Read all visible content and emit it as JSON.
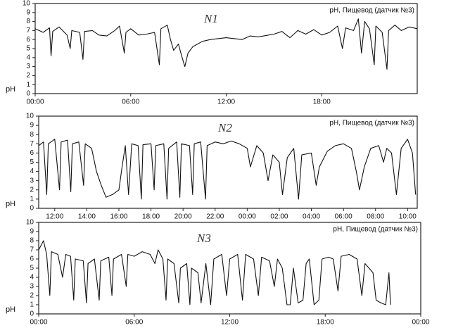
{
  "chart_data": [
    {
      "type": "line",
      "annotation": "N1",
      "ylabel": "pH",
      "x": [
        0,
        0.5,
        0.9,
        1.0,
        1.1,
        1.5,
        2.0,
        2.2,
        2.3,
        2.8,
        3.0,
        3.1,
        3.6,
        4.0,
        4.5,
        5.0,
        5.3,
        5.6,
        5.7,
        6.0,
        6.5,
        7.0,
        7.5,
        7.8,
        7.9,
        8.3,
        8.5,
        8.7,
        9.0,
        9.2,
        9.4,
        9.6,
        9.9,
        10.5,
        11,
        12,
        13,
        13.5,
        14,
        15,
        15.5,
        16.0,
        16.5,
        17.0,
        17.5,
        18.0,
        18.5,
        19.0,
        19.3,
        19.5,
        20.0,
        20.3,
        20.5,
        20.7,
        21.0,
        21.3,
        21.4,
        21.8,
        22.1,
        22.2,
        22.6,
        23.0,
        23.5,
        24.0
      ],
      "series": [
        {
          "name": "pH, Пищевод (датчик №3)",
          "color": "#111111",
          "values": [
            7.2,
            6.8,
            7.3,
            4.2,
            6.9,
            7.4,
            6.5,
            5.0,
            7.0,
            6.8,
            3.8,
            6.9,
            7.0,
            6.5,
            6.4,
            7.0,
            7.5,
            4.5,
            6.8,
            7.2,
            6.5,
            6.6,
            6.8,
            3.2,
            7.2,
            7.6,
            6.0,
            4.8,
            5.5,
            4.2,
            3.0,
            4.5,
            5.2,
            5.8,
            6.0,
            6.2,
            6.0,
            6.4,
            6.3,
            6.6,
            6.9,
            6.2,
            7.0,
            6.6,
            7.1,
            6.5,
            6.8,
            7.5,
            5.0,
            7.3,
            7.0,
            8.3,
            4.5,
            8.0,
            7.2,
            3.2,
            7.5,
            6.8,
            2.7,
            7.0,
            7.6,
            7.0,
            7.4,
            7.2
          ]
        }
      ],
      "xlim": [
        0,
        24
      ],
      "ylim": [
        0,
        10
      ],
      "xticks": [
        {
          "value": 0,
          "label": "00:00"
        },
        {
          "value": 6,
          "label": "06:00"
        },
        {
          "value": 12,
          "label": "12:00"
        },
        {
          "value": 18,
          "label": "18:00"
        }
      ],
      "yticks": [
        0,
        1,
        2,
        3,
        4,
        5,
        6,
        7,
        8,
        9,
        10
      ]
    },
    {
      "type": "line",
      "annotation": "N2",
      "ylabel": "pH",
      "x": [
        11.0,
        11.3,
        11.5,
        11.6,
        12.0,
        12.3,
        12.4,
        12.8,
        13.0,
        13.1,
        13.5,
        13.8,
        13.9,
        14.3,
        14.6,
        14.9,
        15.2,
        15.6,
        16.0,
        16.2,
        16.4,
        16.6,
        16.8,
        17.2,
        17.4,
        17.5,
        18.0,
        18.2,
        18.3,
        18.8,
        19.0,
        19.1,
        19.6,
        19.8,
        19.9,
        20.4,
        20.6,
        20.7,
        21.1,
        21.4,
        21.5,
        22.0,
        22.5,
        23.0,
        23.5,
        24.0,
        24.2,
        24.6,
        25.0,
        25.3,
        25.6,
        26.0,
        26.2,
        26.5,
        26.9,
        27.2,
        27.4,
        28.0,
        28.3,
        28.5,
        29.0,
        29.5,
        30.0,
        30.5,
        30.8,
        31.0,
        31.3,
        31.7,
        32.2,
        32.5,
        32.7,
        33.0,
        33.3,
        33.6,
        34.0,
        34.3,
        34.5
      ],
      "series": [
        {
          "name": "pH, Пищевод (датчик №3)",
          "color": "#111111",
          "values": [
            6.8,
            7.2,
            1.5,
            7.0,
            7.5,
            2.0,
            7.2,
            7.4,
            1.8,
            7.0,
            7.2,
            2.5,
            7.0,
            6.5,
            4.0,
            2.5,
            1.2,
            1.5,
            2.0,
            4.5,
            6.8,
            1.5,
            7.0,
            6.8,
            1.0,
            6.9,
            7.0,
            2.0,
            6.8,
            7.0,
            1.0,
            6.5,
            7.2,
            1.2,
            7.0,
            6.8,
            1.5,
            7.0,
            7.2,
            1.0,
            6.8,
            7.2,
            7.0,
            7.3,
            7.0,
            6.5,
            4.5,
            6.8,
            6.0,
            3.0,
            5.8,
            5.0,
            1.5,
            5.5,
            6.5,
            1.0,
            5.8,
            6.0,
            2.5,
            4.5,
            6.2,
            6.8,
            7.0,
            6.5,
            4.0,
            2.0,
            4.5,
            6.5,
            6.8,
            5.0,
            6.5,
            6.0,
            1.5,
            6.5,
            7.5,
            6.0,
            1.5
          ]
        }
      ],
      "xlim": [
        11,
        34.6
      ],
      "ylim": [
        0,
        10
      ],
      "xticks": [
        {
          "value": 12,
          "label": "12:00"
        },
        {
          "value": 14,
          "label": "14:00"
        },
        {
          "value": 16,
          "label": "16:00"
        },
        {
          "value": 18,
          "label": "18:00"
        },
        {
          "value": 20,
          "label": "20:00"
        },
        {
          "value": 22,
          "label": "22:00"
        },
        {
          "value": 24,
          "label": "00:00"
        },
        {
          "value": 26,
          "label": "02:00"
        },
        {
          "value": 28,
          "label": "04:00"
        },
        {
          "value": 30,
          "label": "06:00"
        },
        {
          "value": 32,
          "label": "08:00"
        },
        {
          "value": 34,
          "label": "10:00"
        }
      ],
      "yticks": [
        0,
        1,
        2,
        3,
        4,
        5,
        6,
        7,
        8,
        9,
        10
      ]
    },
    {
      "type": "line",
      "annotation": "N3",
      "ylabel": "pH",
      "x": [
        0,
        0.3,
        0.5,
        0.7,
        0.8,
        1.2,
        1.5,
        1.7,
        2.0,
        2.2,
        2.3,
        2.8,
        3.0,
        3.1,
        3.5,
        3.8,
        3.9,
        4.4,
        4.6,
        4.7,
        5.2,
        5.5,
        5.6,
        6.0,
        6.5,
        7.0,
        7.3,
        7.5,
        7.8,
        8.0,
        8.1,
        8.5,
        8.8,
        8.9,
        9.3,
        9.5,
        9.6,
        10.0,
        10.2,
        10.5,
        10.8,
        11.0,
        11.5,
        11.8,
        12.0,
        12.5,
        12.8,
        13.0,
        13.5,
        13.8,
        14.0,
        14.5,
        14.8,
        15.0,
        15.3,
        15.6,
        15.8,
        16.0,
        16.3,
        16.6,
        16.8,
        17.0,
        17.3,
        17.6,
        17.8,
        18.2,
        18.5,
        18.8,
        19.0,
        19.5,
        20.0,
        20.3,
        20.5,
        21.0,
        21.2,
        21.5,
        21.8,
        22.0,
        22.1
      ],
      "series": [
        {
          "name": "pH, Пищевод (датчик №3)",
          "color": "#111111",
          "values": [
            7.0,
            8.0,
            6.5,
            2.0,
            6.8,
            6.5,
            4.0,
            6.5,
            6.3,
            1.5,
            6.0,
            5.8,
            1.2,
            5.5,
            6.0,
            1.5,
            5.8,
            6.2,
            2.0,
            6.0,
            6.5,
            3.0,
            6.5,
            6.3,
            6.8,
            6.5,
            5.5,
            7.0,
            6.0,
            1.5,
            6.0,
            5.5,
            1.2,
            5.0,
            5.5,
            1.0,
            5.0,
            4.5,
            1.2,
            5.5,
            1.0,
            6.0,
            6.5,
            2.0,
            6.0,
            6.5,
            1.5,
            6.5,
            6.0,
            2.0,
            6.2,
            5.8,
            3.0,
            6.0,
            5.0,
            1.0,
            1.0,
            5.0,
            1.2,
            1.5,
            5.5,
            6.0,
            1.0,
            1.5,
            6.0,
            6.2,
            6.0,
            2.5,
            6.3,
            6.5,
            6.0,
            2.0,
            5.5,
            4.5,
            1.5,
            1.2,
            1.0,
            4.5,
            1.0
          ]
        }
      ],
      "xlim": [
        0,
        24
      ],
      "ylim": [
        0,
        10
      ],
      "xticks": [
        {
          "value": 0,
          "label": "00:00"
        },
        {
          "value": 6,
          "label": "06:00"
        },
        {
          "value": 12,
          "label": "12:00"
        },
        {
          "value": 18,
          "label": "18:00"
        },
        {
          "value": 24,
          "label": "00:00"
        }
      ],
      "yticks": [
        0,
        1,
        2,
        3,
        4,
        5,
        6,
        7,
        8,
        9,
        10
      ]
    }
  ]
}
